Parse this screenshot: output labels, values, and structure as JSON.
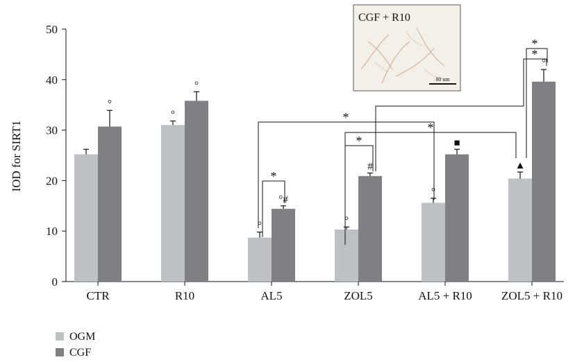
{
  "chart_data": {
    "type": "bar",
    "title": "",
    "xlabel": "",
    "ylabel": "IOD for SIRT1",
    "ylim": [
      0,
      50
    ],
    "yticks": [
      0,
      10,
      20,
      30,
      40,
      50
    ],
    "categories": [
      "CTR",
      "R10",
      "AL5",
      "ZOL5",
      "AL5 + R10",
      "ZOL5 + R10"
    ],
    "series": [
      {
        "name": "OGM",
        "color": "#bfc0c4",
        "values": [
          25.2,
          31.0,
          8.7,
          10.3,
          15.6,
          20.4
        ],
        "errors": [
          1.0,
          0.8,
          1.1,
          0.5,
          0.9,
          1.3
        ],
        "markers": [
          "",
          "°",
          "°",
          "°",
          "°",
          "▲"
        ]
      },
      {
        "name": "CGF",
        "color": "#7f7f84",
        "values": [
          30.7,
          35.8,
          14.4,
          20.9,
          25.2,
          39.6
        ],
        "errors": [
          3.2,
          1.8,
          0.6,
          0.6,
          1.0,
          2.4
        ],
        "markers": [
          "°",
          "°",
          "°#",
          "#",
          "■",
          "°"
        ]
      }
    ],
    "significance_symbol": "*",
    "legend_position": "bottom-left",
    "grid": false,
    "inset_label": "CGF + R10",
    "scale_bar_label": "80 um"
  }
}
